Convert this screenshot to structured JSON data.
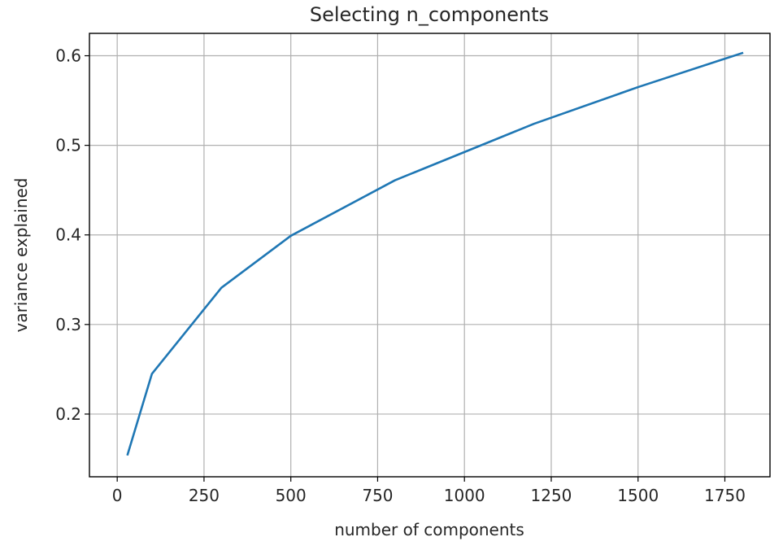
{
  "chart_data": {
    "type": "line",
    "title": "Selecting n_components",
    "xlabel": "number of components",
    "ylabel": "variance explained",
    "xlim": [
      -80,
      1880
    ],
    "ylim": [
      0.13,
      0.625
    ],
    "xticks": [
      0,
      250,
      500,
      750,
      1000,
      1250,
      1500,
      1750
    ],
    "xtick_labels": [
      "0",
      "250",
      "500",
      "750",
      "1000",
      "1250",
      "1500",
      "1750"
    ],
    "yticks": [
      0.2,
      0.3,
      0.4,
      0.5,
      0.6
    ],
    "ytick_labels": [
      "0.2",
      "0.3",
      "0.4",
      "0.5",
      "0.6"
    ],
    "grid": true,
    "series": [
      {
        "color": "#1f77b4",
        "x": [
          30,
          100,
          300,
          500,
          800,
          1200,
          1500,
          1800
        ],
        "y": [
          0.155,
          0.245,
          0.341,
          0.399,
          0.461,
          0.524,
          0.565,
          0.603
        ]
      }
    ]
  }
}
